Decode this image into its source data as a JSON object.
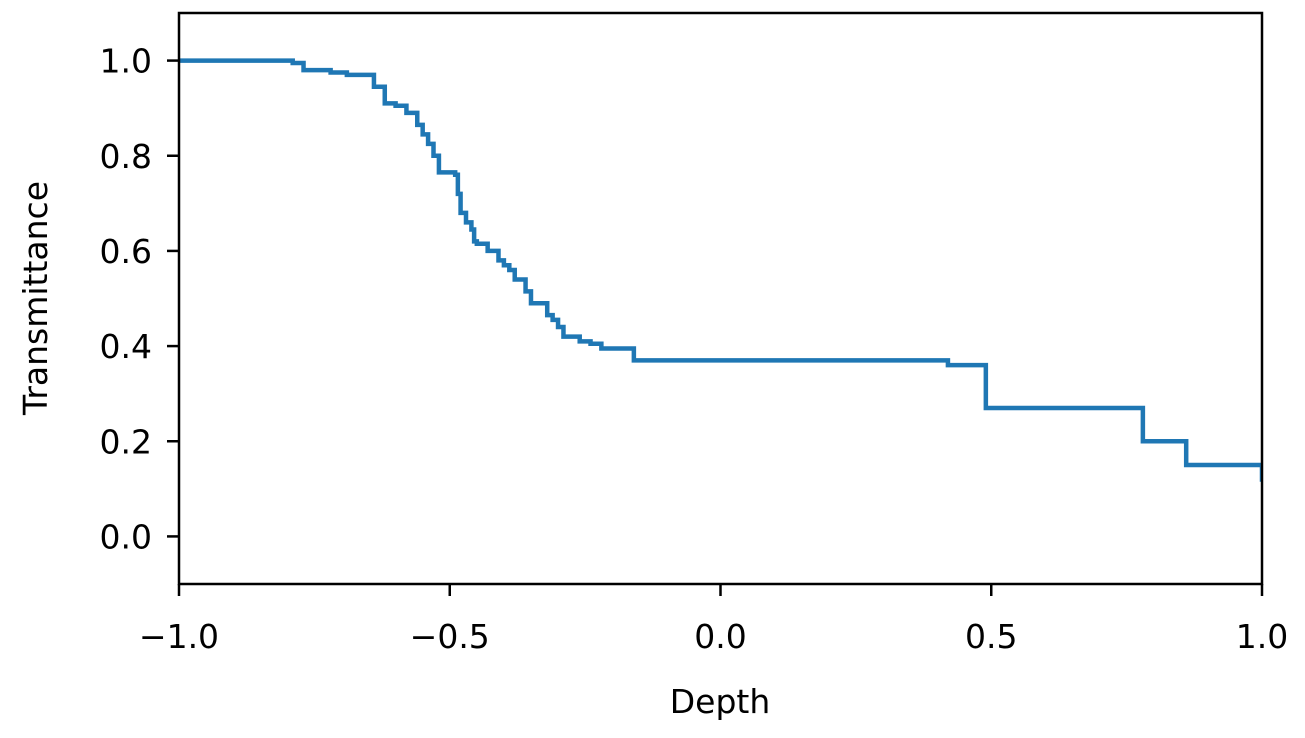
{
  "chart_data": {
    "type": "line",
    "title": "",
    "xlabel": "Depth",
    "ylabel": "Transmittance",
    "xlim": [
      -1.0,
      1.0
    ],
    "ylim": [
      -0.1,
      1.1
    ],
    "xticks": [
      -1.0,
      -0.5,
      0.0,
      0.5,
      1.0
    ],
    "xtick_labels": [
      "−1.0",
      "−0.5",
      "0.0",
      "0.5",
      "1.0"
    ],
    "yticks": [
      0.0,
      0.2,
      0.4,
      0.6,
      0.8,
      1.0
    ],
    "ytick_labels": [
      "0.0",
      "0.2",
      "0.4",
      "0.6",
      "0.8",
      "1.0"
    ],
    "grid": false,
    "legend": "none",
    "line_color": "#1f77b4",
    "step": "post",
    "series": [
      {
        "x": [
          -1.0,
          -0.79,
          -0.77,
          -0.72,
          -0.69,
          -0.64,
          -0.62,
          -0.6,
          -0.58,
          -0.56,
          -0.55,
          -0.54,
          -0.53,
          -0.52,
          -0.49,
          -0.485,
          -0.48,
          -0.47,
          -0.46,
          -0.455,
          -0.45,
          -0.43,
          -0.41,
          -0.4,
          -0.39,
          -0.38,
          -0.36,
          -0.35,
          -0.32,
          -0.31,
          -0.3,
          -0.29,
          -0.26,
          -0.24,
          -0.22,
          -0.16,
          0.42,
          0.49,
          0.78,
          0.86,
          1.0
        ],
        "y": [
          1.0,
          0.995,
          0.98,
          0.975,
          0.97,
          0.945,
          0.91,
          0.905,
          0.89,
          0.865,
          0.845,
          0.825,
          0.8,
          0.765,
          0.76,
          0.72,
          0.68,
          0.66,
          0.645,
          0.62,
          0.615,
          0.6,
          0.58,
          0.57,
          0.56,
          0.54,
          0.515,
          0.49,
          0.465,
          0.455,
          0.44,
          0.42,
          0.41,
          0.405,
          0.395,
          0.37,
          0.36,
          0.27,
          0.2,
          0.15,
          0.115
        ]
      }
    ]
  }
}
